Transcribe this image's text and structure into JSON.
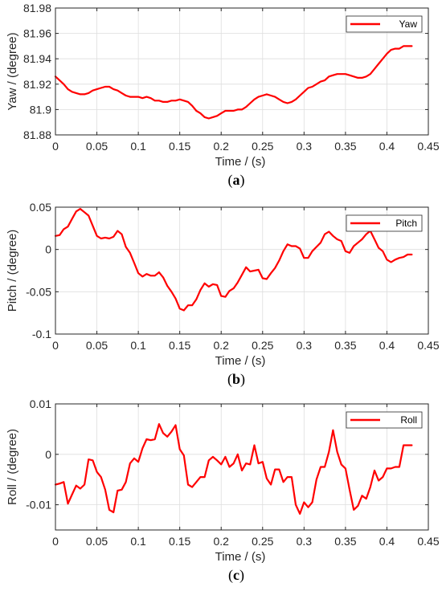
{
  "chart_data": [
    {
      "type": "line",
      "panel": "a",
      "caption": "(a)",
      "xlabel": "Time / (s)",
      "ylabel": "Yaw / (degree)",
      "xlim": [
        0,
        0.45
      ],
      "ylim": [
        81.88,
        81.98
      ],
      "xticks": [
        "0",
        "0.05",
        "0.1",
        "0.15",
        "0.2",
        "0.25",
        "0.3",
        "0.35",
        "0.4",
        "0.45"
      ],
      "yticks": [
        "81.88",
        "81.9",
        "81.92",
        "81.94",
        "81.96",
        "81.98"
      ],
      "grid": true,
      "legend_position": "top-right",
      "series": [
        {
          "name": "Yaw",
          "color": "#ff0000",
          "x": [
            0,
            0.005,
            0.01,
            0.015,
            0.02,
            0.025,
            0.03,
            0.035,
            0.04,
            0.045,
            0.05,
            0.055,
            0.06,
            0.065,
            0.07,
            0.075,
            0.08,
            0.085,
            0.09,
            0.095,
            0.1,
            0.105,
            0.11,
            0.115,
            0.12,
            0.125,
            0.13,
            0.135,
            0.14,
            0.145,
            0.15,
            0.155,
            0.16,
            0.165,
            0.17,
            0.175,
            0.18,
            0.185,
            0.19,
            0.195,
            0.2,
            0.205,
            0.21,
            0.215,
            0.22,
            0.225,
            0.23,
            0.235,
            0.24,
            0.245,
            0.25,
            0.255,
            0.26,
            0.265,
            0.27,
            0.275,
            0.28,
            0.285,
            0.29,
            0.295,
            0.3,
            0.305,
            0.31,
            0.315,
            0.32,
            0.325,
            0.33,
            0.335,
            0.34,
            0.345,
            0.35,
            0.355,
            0.36,
            0.365,
            0.37,
            0.375,
            0.38,
            0.385,
            0.39,
            0.395,
            0.4,
            0.405,
            0.41,
            0.415,
            0.42,
            0.425,
            0.43
          ],
          "y": [
            81.926,
            81.923,
            81.92,
            81.916,
            81.914,
            81.913,
            81.912,
            81.912,
            81.913,
            81.915,
            81.916,
            81.917,
            81.918,
            81.918,
            81.916,
            81.915,
            81.913,
            81.911,
            81.91,
            81.91,
            81.91,
            81.909,
            81.91,
            81.909,
            81.907,
            81.907,
            81.906,
            81.906,
            81.907,
            81.907,
            81.908,
            81.907,
            81.906,
            81.903,
            81.899,
            81.897,
            81.894,
            81.893,
            81.894,
            81.895,
            81.897,
            81.899,
            81.899,
            81.899,
            81.9,
            81.9,
            81.902,
            81.905,
            81.908,
            81.91,
            81.911,
            81.912,
            81.911,
            81.91,
            81.908,
            81.906,
            81.905,
            81.906,
            81.908,
            81.911,
            81.914,
            81.917,
            81.918,
            81.92,
            81.922,
            81.923,
            81.926,
            81.927,
            81.928,
            81.928,
            81.928,
            81.927,
            81.926,
            81.925,
            81.925,
            81.926,
            81.928,
            81.932,
            81.936,
            81.94,
            81.944,
            81.947,
            81.948,
            81.948,
            81.95,
            81.95,
            81.95
          ]
        }
      ]
    },
    {
      "type": "line",
      "panel": "b",
      "caption": "(b)",
      "xlabel": "Time / (s)",
      "ylabel": "Pitch / (degree)",
      "xlim": [
        0,
        0.45
      ],
      "ylim": [
        -0.1,
        0.05
      ],
      "xticks": [
        "0",
        "0.05",
        "0.1",
        "0.15",
        "0.2",
        "0.25",
        "0.3",
        "0.35",
        "0.4",
        "0.45"
      ],
      "yticks": [
        "-0.1",
        "-0.05",
        "0",
        "0.05"
      ],
      "grid": true,
      "legend_position": "top-right",
      "series": [
        {
          "name": "Pitch",
          "color": "#ff0000",
          "x": [
            0,
            0.005,
            0.01,
            0.015,
            0.02,
            0.025,
            0.03,
            0.035,
            0.04,
            0.045,
            0.05,
            0.055,
            0.06,
            0.065,
            0.07,
            0.075,
            0.08,
            0.085,
            0.09,
            0.095,
            0.1,
            0.105,
            0.11,
            0.115,
            0.12,
            0.125,
            0.13,
            0.135,
            0.14,
            0.145,
            0.15,
            0.155,
            0.16,
            0.165,
            0.17,
            0.175,
            0.18,
            0.185,
            0.19,
            0.195,
            0.2,
            0.205,
            0.21,
            0.215,
            0.22,
            0.225,
            0.23,
            0.235,
            0.24,
            0.245,
            0.25,
            0.255,
            0.26,
            0.265,
            0.27,
            0.275,
            0.28,
            0.285,
            0.29,
            0.295,
            0.3,
            0.305,
            0.31,
            0.315,
            0.32,
            0.325,
            0.33,
            0.335,
            0.34,
            0.345,
            0.35,
            0.355,
            0.36,
            0.365,
            0.37,
            0.375,
            0.38,
            0.385,
            0.39,
            0.395,
            0.4,
            0.405,
            0.41,
            0.415,
            0.42,
            0.425,
            0.43
          ],
          "y": [
            0.016,
            0.017,
            0.024,
            0.027,
            0.036,
            0.045,
            0.048,
            0.044,
            0.04,
            0.028,
            0.016,
            0.013,
            0.014,
            0.013,
            0.015,
            0.022,
            0.018,
            0.003,
            -0.004,
            -0.016,
            -0.028,
            -0.032,
            -0.029,
            -0.031,
            -0.031,
            -0.027,
            -0.033,
            -0.043,
            -0.05,
            -0.058,
            -0.07,
            -0.072,
            -0.066,
            -0.066,
            -0.059,
            -0.048,
            -0.04,
            -0.044,
            -0.041,
            -0.042,
            -0.055,
            -0.056,
            -0.049,
            -0.046,
            -0.039,
            -0.03,
            -0.021,
            -0.026,
            -0.025,
            -0.024,
            -0.034,
            -0.035,
            -0.028,
            -0.022,
            -0.013,
            -0.002,
            0.006,
            0.004,
            0.004,
            0.001,
            -0.01,
            -0.01,
            -0.002,
            0.003,
            0.008,
            0.018,
            0.021,
            0.016,
            0.012,
            0.01,
            -0.002,
            -0.004,
            0.004,
            0.008,
            0.012,
            0.018,
            0.022,
            0.012,
            0.002,
            -0.002,
            -0.012,
            -0.015,
            -0.012,
            -0.01,
            -0.009,
            -0.006,
            -0.006
          ]
        }
      ]
    },
    {
      "type": "line",
      "panel": "c",
      "caption": "(c)",
      "xlabel": "Time / (s)",
      "ylabel": "Roll / (degree)",
      "xlim": [
        0,
        0.45
      ],
      "ylim": [
        -0.015,
        0.01
      ],
      "xticks": [
        "0",
        "0.05",
        "0.1",
        "0.15",
        "0.2",
        "0.25",
        "0.3",
        "0.35",
        "0.4",
        "0.45"
      ],
      "yticks": [
        "-0.01",
        "0",
        "0.01"
      ],
      "grid": true,
      "legend_position": "top-right",
      "series": [
        {
          "name": "Roll",
          "color": "#ff0000",
          "x": [
            0,
            0.005,
            0.01,
            0.015,
            0.02,
            0.025,
            0.03,
            0.035,
            0.04,
            0.045,
            0.05,
            0.055,
            0.06,
            0.065,
            0.07,
            0.075,
            0.08,
            0.085,
            0.09,
            0.095,
            0.1,
            0.105,
            0.11,
            0.115,
            0.12,
            0.125,
            0.13,
            0.135,
            0.14,
            0.145,
            0.15,
            0.155,
            0.16,
            0.165,
            0.17,
            0.175,
            0.18,
            0.185,
            0.19,
            0.195,
            0.2,
            0.205,
            0.21,
            0.215,
            0.22,
            0.225,
            0.23,
            0.235,
            0.24,
            0.245,
            0.25,
            0.255,
            0.26,
            0.265,
            0.27,
            0.275,
            0.28,
            0.285,
            0.29,
            0.295,
            0.3,
            0.305,
            0.31,
            0.315,
            0.32,
            0.325,
            0.33,
            0.335,
            0.34,
            0.345,
            0.35,
            0.355,
            0.36,
            0.365,
            0.37,
            0.375,
            0.38,
            0.385,
            0.39,
            0.395,
            0.4,
            0.405,
            0.41,
            0.415,
            0.42,
            0.425,
            0.43
          ],
          "y": [
            -0.006,
            -0.0058,
            -0.0055,
            -0.0098,
            -0.008,
            -0.0062,
            -0.0068,
            -0.006,
            -0.001,
            -0.0012,
            -0.0035,
            -0.0045,
            -0.007,
            -0.011,
            -0.0115,
            -0.0072,
            -0.007,
            -0.0055,
            -0.0018,
            -0.0008,
            -0.0015,
            0.0012,
            0.003,
            0.0028,
            0.003,
            0.006,
            0.0042,
            0.0035,
            0.0045,
            0.0058,
            0.001,
            -0.0002,
            -0.006,
            -0.0065,
            -0.0055,
            -0.0045,
            -0.0045,
            -0.0012,
            -0.0005,
            -0.0012,
            -0.002,
            -0.0005,
            -0.0025,
            -0.0018,
            0.0,
            -0.0032,
            -0.0018,
            -0.002,
            0.0018,
            -0.0018,
            -0.0015,
            -0.0048,
            -0.006,
            -0.003,
            -0.003,
            -0.0055,
            -0.0045,
            -0.0045,
            -0.01,
            -0.0118,
            -0.0095,
            -0.0105,
            -0.0095,
            -0.005,
            -0.0025,
            -0.0025,
            0.0005,
            0.0048,
            0.0005,
            -0.002,
            -0.0028,
            -0.007,
            -0.011,
            -0.0102,
            -0.0082,
            -0.0088,
            -0.0065,
            -0.0032,
            -0.0052,
            -0.0045,
            -0.0028,
            -0.0028,
            -0.0025,
            -0.0025,
            0.0018,
            0.0018,
            0.0018
          ]
        }
      ]
    }
  ]
}
